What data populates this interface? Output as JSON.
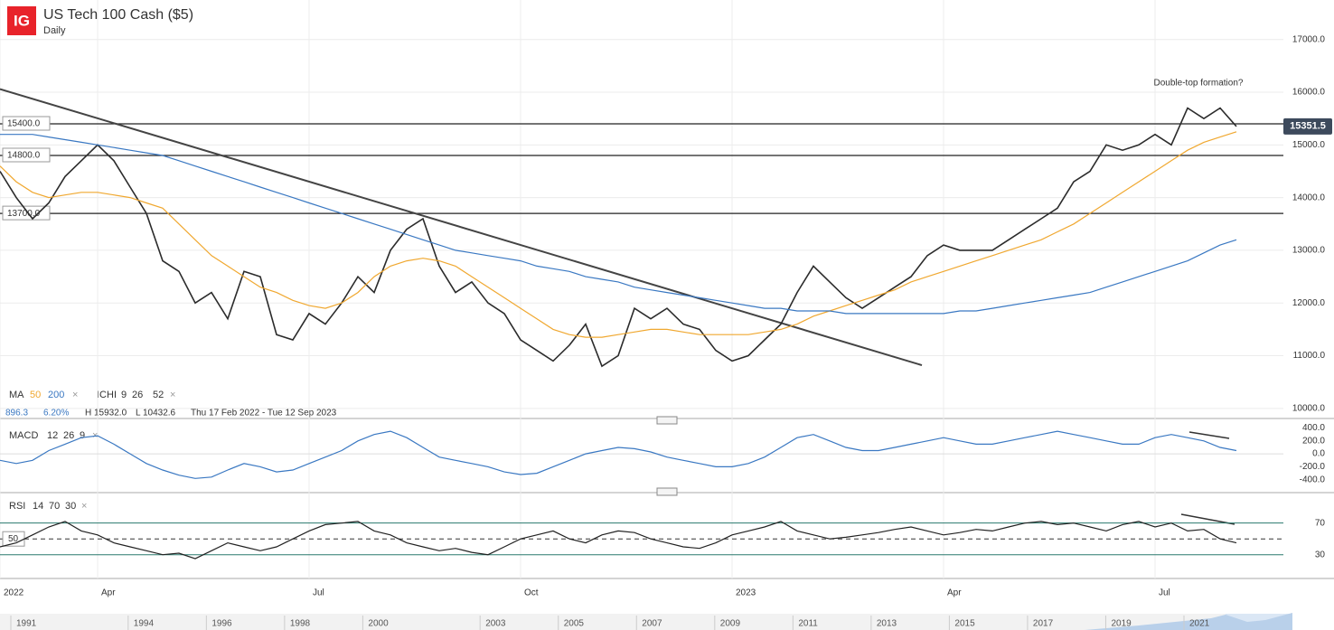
{
  "header": {
    "logo": "IG",
    "title": "US Tech 100 Cash ($5)",
    "interval": "Daily"
  },
  "legend": {
    "ma_label": "MA",
    "ma_fast": 50,
    "ma_slow": 200,
    "ichi_label": "ICHI",
    "ichi_params": [
      9,
      26,
      52
    ],
    "last_change": 896.3,
    "change_pct": "6.20%",
    "high": "H 15932.0",
    "low": "L 10432.6",
    "range": "Thu 17 Feb 2022 - Tue 12 Sep 2023"
  },
  "chart_data": [
    {
      "type": "line",
      "categories": [
        "2022",
        null,
        null,
        null,
        null,
        null,
        "Apr",
        null,
        null,
        null,
        null,
        null,
        null,
        null,
        null,
        null,
        null,
        null,
        null,
        "Jul",
        null,
        null,
        null,
        null,
        null,
        null,
        null,
        null,
        null,
        null,
        null,
        null,
        "Oct",
        null,
        null,
        null,
        null,
        null,
        null,
        null,
        null,
        null,
        null,
        null,
        null,
        "2023",
        null,
        null,
        null,
        null,
        null,
        null,
        null,
        null,
        null,
        null,
        null,
        null,
        "Apr",
        null,
        null,
        null,
        null,
        null,
        null,
        null,
        null,
        null,
        null,
        null,
        null,
        "Jul",
        null,
        null,
        null,
        null,
        null
      ],
      "series": [
        {
          "color": "#2b2b2b",
          "values": [
            14500,
            14000,
            13600,
            13900,
            14400,
            14700,
            15000,
            14700,
            14200,
            13700,
            12800,
            12600,
            12000,
            12200,
            11700,
            12600,
            12500,
            11400,
            11300,
            11800,
            11600,
            12000,
            12500,
            12200,
            13000,
            13400,
            13600,
            12700,
            12200,
            12400,
            12000,
            11800,
            11300,
            11100,
            10900,
            11200,
            11600,
            10800,
            11000,
            11900,
            11700,
            11900,
            11600,
            11500,
            11100,
            10900,
            11000,
            11300,
            11600,
            12200,
            12700,
            12400,
            12100,
            11900,
            12100,
            12300,
            12500,
            12900,
            13100,
            13000,
            13000,
            13000,
            13200,
            13400,
            13600,
            13800,
            14300,
            14500,
            15000,
            14900,
            15000,
            15200,
            15000,
            15700,
            15500,
            15700,
            15350
          ]
        },
        {
          "color": "#f0a830",
          "values": [
            14600,
            14300,
            14100,
            14000,
            14050,
            14100,
            14100,
            14050,
            14000,
            13900,
            13800,
            13500,
            13200,
            12900,
            12700,
            12500,
            12300,
            12200,
            12050,
            11950,
            11900,
            12000,
            12200,
            12500,
            12700,
            12800,
            12850,
            12800,
            12700,
            12500,
            12300,
            12100,
            11900,
            11700,
            11500,
            11400,
            11350,
            11350,
            11400,
            11450,
            11500,
            11500,
            11450,
            11400,
            11400,
            11400,
            11400,
            11450,
            11500,
            11600,
            11750,
            11850,
            11950,
            12050,
            12150,
            12250,
            12400,
            12500,
            12600,
            12700,
            12800,
            12900,
            13000,
            13100,
            13200,
            13350,
            13500,
            13700,
            13900,
            14100,
            14300,
            14500,
            14700,
            14900,
            15050,
            15150,
            15250
          ]
        },
        {
          "color": "#3a78c2",
          "values": [
            15200,
            15200,
            15200,
            15150,
            15100,
            15050,
            15000,
            14950,
            14900,
            14850,
            14800,
            14700,
            14600,
            14500,
            14400,
            14300,
            14200,
            14100,
            14000,
            13900,
            13800,
            13700,
            13600,
            13500,
            13400,
            13300,
            13200,
            13100,
            13000,
            12950,
            12900,
            12850,
            12800,
            12700,
            12650,
            12600,
            12500,
            12450,
            12400,
            12300,
            12250,
            12200,
            12150,
            12100,
            12050,
            12000,
            11950,
            11900,
            11900,
            11850,
            11850,
            11850,
            11800,
            11800,
            11800,
            11800,
            11800,
            11800,
            11800,
            11850,
            11850,
            11900,
            11950,
            12000,
            12050,
            12100,
            12150,
            12200,
            12300,
            12400,
            12500,
            12600,
            12700,
            12800,
            12950,
            13100,
            13200
          ]
        }
      ],
      "ylim": [
        9860,
        17750
      ],
      "yticks": [
        {
          "value": 10000,
          "label": "10000.0"
        },
        {
          "value": 11000,
          "label": "11000.0"
        },
        {
          "value": 12000,
          "label": "12000.0"
        },
        {
          "value": 13000,
          "label": "13000.0"
        },
        {
          "value": 14000,
          "label": "14000.0"
        },
        {
          "value": 15000,
          "label": "15000.0"
        },
        {
          "value": 16000,
          "label": "16000.0"
        },
        {
          "value": 17000,
          "label": "17000.0"
        }
      ],
      "levels": [
        {
          "value": 15400,
          "label": "15400.0"
        },
        {
          "value": 14800,
          "label": "14800.0"
        },
        {
          "value": 13700,
          "label": "13700.0"
        }
      ],
      "trend_line": [
        16060,
        10820
      ],
      "last_price": 15351.5,
      "annotation": "Double-top formation?",
      "grid": true
    },
    {
      "type": "line",
      "label": "MACD",
      "params": [
        12,
        26,
        9
      ],
      "series": [
        {
          "color": "#3a78c2",
          "values": [
            -100,
            -150,
            -100,
            50,
            150,
            250,
            280,
            150,
            0,
            -150,
            -250,
            -330,
            -380,
            -360,
            -250,
            -150,
            -200,
            -280,
            -250,
            -150,
            -50,
            50,
            200,
            300,
            350,
            250,
            100,
            -50,
            -100,
            -150,
            -200,
            -280,
            -320,
            -300,
            -200,
            -100,
            0,
            50,
            100,
            80,
            30,
            -50,
            -100,
            -150,
            -200,
            -200,
            -150,
            -50,
            100,
            250,
            300,
            200,
            100,
            50,
            50,
            100,
            150,
            200,
            250,
            200,
            150,
            150,
            200,
            250,
            300,
            350,
            300,
            250,
            200,
            150,
            150,
            250,
            300,
            250,
            200,
            100,
            50
          ]
        }
      ],
      "ylim": [
        -600,
        505
      ],
      "yticks": [
        {
          "value": -400,
          "label": "-400.0"
        },
        {
          "value": -200,
          "label": "-200.0"
        },
        {
          "value": 0,
          "label": "0.0"
        },
        {
          "value": 200,
          "label": "200.0"
        },
        {
          "value": 400,
          "label": "400.0"
        }
      ]
    },
    {
      "type": "line",
      "label": "RSI",
      "params": [
        14,
        70,
        30
      ],
      "series": [
        {
          "color": "#222222",
          "values": [
            40,
            45,
            55,
            65,
            72,
            60,
            55,
            45,
            40,
            35,
            30,
            32,
            25,
            35,
            45,
            40,
            35,
            40,
            50,
            60,
            68,
            70,
            72,
            60,
            55,
            45,
            40,
            35,
            38,
            33,
            30,
            40,
            50,
            55,
            60,
            50,
            45,
            55,
            60,
            58,
            50,
            45,
            40,
            38,
            45,
            55,
            60,
            65,
            72,
            60,
            55,
            50,
            52,
            55,
            58,
            62,
            65,
            60,
            55,
            58,
            62,
            60,
            65,
            70,
            72,
            68,
            70,
            65,
            60,
            68,
            72,
            65,
            70,
            60,
            62,
            50,
            45
          ]
        }
      ],
      "ylim": [
        0,
        105
      ],
      "yticks": [
        30,
        70
      ],
      "midline": 50
    }
  ],
  "navigator": {
    "years": [
      1991,
      1994,
      1996,
      1998,
      2000,
      2003,
      2005,
      2007,
      2009,
      2011,
      2013,
      2015,
      2017,
      2019,
      2021
    ]
  }
}
